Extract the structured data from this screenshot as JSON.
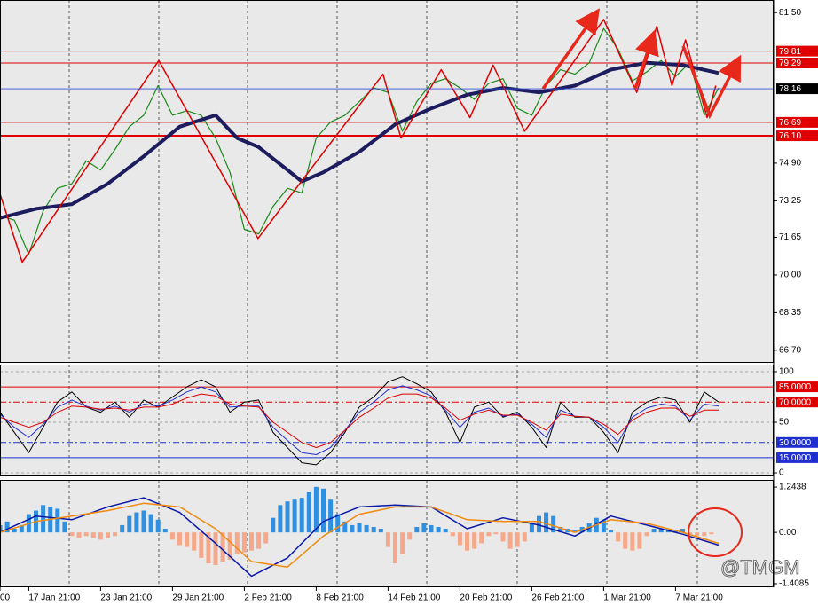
{
  "chart_data": [
    {
      "type": "line",
      "xlim": [
        0,
        100
      ],
      "ylim": [
        66.15,
        82.05
      ],
      "yticks": [
        {
          "value": 81.5,
          "label": "81.50"
        },
        {
          "value": 74.9,
          "label": "74.90"
        },
        73.25,
        71.65,
        {
          "value": 70,
          "label": "70.00"
        },
        68.35,
        {
          "value": 66.7,
          "label": "66.70"
        }
      ],
      "levels": [
        {
          "value": 79.81,
          "color": "#e00000",
          "width": 1
        },
        {
          "value": 79.29,
          "color": "#e00000",
          "width": 1
        },
        {
          "value": 76.69,
          "color": "#e00000",
          "width": 1
        },
        {
          "value": 76.1,
          "label": "76.10",
          "color": "#e00000",
          "width": 2
        }
      ],
      "current_price": {
        "value": 78.16,
        "color": "#3050d0"
      },
      "series": [
        {
          "color": "#1a8a1a",
          "width": 1.2,
          "x": [
            0,
            2,
            4,
            6,
            8,
            10,
            12,
            14,
            16,
            18,
            20,
            22,
            24,
            26,
            28,
            30,
            32,
            34,
            36,
            38,
            40,
            42,
            44,
            46,
            48,
            50,
            52,
            54,
            56,
            58,
            60,
            62,
            64,
            66,
            68,
            70,
            72,
            74,
            76,
            78,
            80,
            82,
            84,
            86,
            88,
            90,
            92,
            94,
            96,
            98,
            100
          ],
          "values": [
            72.6,
            72.4,
            70.9,
            72.8,
            73.8,
            74,
            75,
            74.6,
            75.5,
            76.5,
            77,
            78.3,
            77,
            77.2,
            77,
            76,
            74.5,
            72,
            71.8,
            73,
            73.8,
            73.6,
            76,
            76.7,
            77,
            77.6,
            78.2,
            78,
            76.3,
            77.6,
            78.4,
            78.6,
            78.2,
            77.7,
            78.4,
            78.6,
            77.3,
            77,
            78.3,
            79,
            78.8,
            79.3,
            80.8,
            79.9,
            78.5,
            78.9,
            79.4,
            78.7,
            79.3,
            77,
            78.2
          ]
        },
        {
          "color": "#1c1c5e",
          "width": 4,
          "x": [
            0,
            5,
            10,
            15,
            20,
            25,
            30,
            33,
            36,
            40,
            42,
            45,
            50,
            55,
            60,
            65,
            70,
            75,
            80,
            85,
            90,
            95,
            100
          ],
          "values": [
            72.5,
            72.9,
            73.1,
            74,
            75.2,
            76.5,
            77,
            76,
            75.6,
            74.6,
            74.1,
            74.5,
            75.4,
            76.6,
            77.3,
            77.9,
            78.2,
            78,
            78.3,
            79,
            79.3,
            79.2,
            78.85
          ]
        },
        {
          "color": "#e00000",
          "width": 1.5,
          "x": [
            0,
            3.1,
            22.1,
            35.9,
            53.3,
            55.8,
            61.4,
            65.4,
            68.6,
            73,
            84,
            88.6,
            91.4,
            93.5,
            95.4,
            98.4,
            99.6
          ],
          "values": [
            73.55,
            70.56,
            79.4,
            71.6,
            78.8,
            76,
            79,
            76.9,
            79.2,
            76.3,
            81.2,
            78,
            80.9,
            78.3,
            80.3,
            76.9,
            78.3
          ]
        }
      ]
    },
    {
      "type": "line",
      "xlim": [
        0,
        100
      ],
      "ylim": [
        -3.5,
        107
      ],
      "grid": true,
      "yticks": [
        100,
        50,
        0
      ],
      "levels": [
        {
          "value": 85,
          "label": "85.0000",
          "color": "#e00000",
          "style": "solid"
        },
        {
          "value": 70,
          "label": "70.0000",
          "color": "#e00000",
          "style": "dashdot"
        },
        {
          "value": 30,
          "label": "30.0000",
          "color": "#2030d0",
          "style": "dashdot"
        },
        {
          "value": 15,
          "label": "15.0000",
          "color": "#2030d0",
          "style": "solid"
        }
      ],
      "x": [
        0,
        2,
        4,
        6,
        8,
        10,
        12,
        14,
        16,
        18,
        20,
        22,
        24,
        26,
        28,
        30,
        32,
        34,
        36,
        38,
        40,
        42,
        44,
        46,
        48,
        50,
        52,
        54,
        56,
        58,
        60,
        62,
        64,
        66,
        68,
        70,
        72,
        74,
        76,
        78,
        80,
        82,
        84,
        86,
        88,
        90,
        92,
        94,
        96,
        98,
        100
      ],
      "series": [
        {
          "color": "#000000",
          "width": 1,
          "values": [
            60,
            40,
            20,
            45,
            70,
            80,
            65,
            60,
            70,
            55,
            72,
            65,
            75,
            85,
            92,
            85,
            60,
            70,
            72,
            40,
            25,
            10,
            8,
            20,
            40,
            65,
            75,
            90,
            95,
            88,
            80,
            60,
            30,
            65,
            70,
            55,
            60,
            45,
            25,
            70,
            55,
            55,
            40,
            20,
            60,
            70,
            75,
            72,
            50,
            80,
            70
          ]
        },
        {
          "color": "#2030d0",
          "width": 1,
          "values": [
            58,
            45,
            35,
            48,
            65,
            72,
            66,
            62,
            66,
            60,
            68,
            66,
            72,
            80,
            85,
            80,
            65,
            66,
            66,
            45,
            32,
            20,
            18,
            25,
            42,
            60,
            70,
            82,
            86,
            82,
            76,
            62,
            45,
            60,
            64,
            56,
            58,
            48,
            35,
            62,
            56,
            55,
            45,
            30,
            55,
            64,
            68,
            66,
            52,
            68,
            66
          ]
        },
        {
          "color": "#e00000",
          "width": 1,
          "values": [
            55,
            50,
            45,
            50,
            60,
            66,
            65,
            63,
            64,
            62,
            65,
            65,
            68,
            74,
            78,
            76,
            68,
            66,
            65,
            50,
            40,
            30,
            25,
            30,
            42,
            55,
            64,
            74,
            78,
            78,
            74,
            64,
            52,
            58,
            62,
            57,
            57,
            50,
            42,
            58,
            56,
            55,
            48,
            38,
            52,
            60,
            64,
            64,
            56,
            62,
            62
          ]
        }
      ]
    },
    {
      "type": "bar",
      "xlim": [
        0,
        100
      ],
      "ylim": [
        -1.506,
        1.44
      ],
      "yticks": [
        1.2438,
        {
          "value": 0,
          "label": "0.00"
        },
        -1.4085
      ],
      "colors": {
        "positive": "#2f8fe0",
        "negative": "#f6a88a"
      },
      "x": [
        0,
        1,
        2,
        3,
        4,
        5,
        6,
        7,
        8,
        9,
        10,
        11,
        12,
        13,
        14,
        15,
        16,
        17,
        18,
        19,
        20,
        21,
        22,
        23,
        24,
        25,
        26,
        27,
        28,
        29,
        30,
        31,
        32,
        33,
        34,
        35,
        36,
        37,
        38,
        39,
        40,
        41,
        42,
        43,
        44,
        45,
        46,
        47,
        48,
        49,
        50,
        51,
        52,
        53,
        54,
        55,
        56,
        57,
        58,
        59,
        60,
        61,
        62,
        63,
        64,
        65,
        66,
        67,
        68,
        69,
        70,
        71,
        72,
        73,
        74,
        75,
        76,
        77,
        78,
        79,
        80,
        81,
        82,
        83,
        84,
        85,
        86,
        87,
        88,
        89,
        90,
        91,
        92,
        93,
        94,
        95,
        96,
        97,
        98,
        99
      ],
      "values": [
        0.2,
        0.3,
        0.1,
        0.2,
        0.5,
        0.6,
        0.75,
        0.7,
        0.65,
        0.3,
        -0.1,
        -0.15,
        -0.1,
        -0.15,
        -0.2,
        -0.15,
        -0.1,
        0.2,
        0.45,
        0.55,
        0.6,
        0.5,
        0.35,
        0.1,
        -0.2,
        -0.35,
        -0.4,
        -0.5,
        -0.7,
        -0.85,
        -0.9,
        -0.8,
        -0.75,
        -0.6,
        -0.55,
        -0.5,
        -0.45,
        -0.3,
        0.4,
        0.75,
        0.85,
        0.9,
        0.95,
        1.1,
        1.25,
        1.2,
        0.9,
        0.5,
        0.3,
        0.2,
        0.25,
        0.2,
        0.15,
        0.1,
        -0.4,
        -0.85,
        -0.6,
        -0.2,
        0.15,
        0.25,
        0.2,
        0.15,
        0.1,
        -0.1,
        -0.35,
        -0.5,
        -0.45,
        -0.3,
        -0.1,
        -0.05,
        -0.25,
        -0.45,
        -0.4,
        -0.25,
        0.25,
        0.45,
        0.55,
        0.45,
        0.15,
        0.1,
        0.05,
        0.15,
        0.25,
        0.4,
        0.35,
        0.05,
        -0.25,
        -0.45,
        -0.5,
        -0.45,
        -0.1,
        0.1,
        0.1,
        0.1,
        0.05,
        0.1,
        -0.05,
        -0.1,
        -0.1,
        -0.05
      ],
      "series": [
        {
          "color": "#0a1aa8",
          "width": 1.5,
          "x": [
            0,
            5,
            10,
            15,
            20,
            25,
            30,
            35,
            40,
            45,
            50,
            55,
            60,
            65,
            70,
            75,
            80,
            85,
            90,
            95,
            100
          ],
          "values": [
            0,
            0.45,
            0.35,
            0.7,
            0.95,
            0.55,
            -0.3,
            -1.2,
            -0.7,
            0.3,
            0.7,
            0.75,
            0.7,
            0.1,
            0.4,
            0.2,
            -0.1,
            0.45,
            0.2,
            -0.05,
            -0.35
          ]
        },
        {
          "color": "#f08a10",
          "width": 1.5,
          "x": [
            0,
            5,
            10,
            15,
            20,
            25,
            30,
            35,
            40,
            45,
            50,
            55,
            60,
            65,
            70,
            75,
            80,
            85,
            90,
            95,
            100
          ],
          "values": [
            0,
            0.3,
            0.45,
            0.6,
            0.8,
            0.7,
            0.1,
            -0.8,
            -0.95,
            -0.1,
            0.5,
            0.7,
            0.7,
            0.35,
            0.3,
            0.3,
            0,
            0.35,
            0.25,
            0,
            -0.3
          ]
        }
      ],
      "xticks": [
        {
          "value": 0,
          "label": "00"
        },
        {
          "value": 4,
          "label": "17 Jan 21:00"
        },
        {
          "value": 14,
          "label": "23 Jan 21:00"
        },
        {
          "value": 24,
          "label": "29 Jan 21:00"
        },
        {
          "value": 34,
          "label": "2 Feb 21:00"
        },
        {
          "value": 44,
          "label": "8 Feb 21:00"
        },
        {
          "value": 54,
          "label": "14 Feb 21:00"
        },
        {
          "value": 64,
          "label": "20 Feb 21:00"
        },
        {
          "value": 74,
          "label": "26 Feb 21:00"
        },
        {
          "value": 84,
          "label": "1 Mar 21:00"
        },
        {
          "value": 94,
          "label": "7 Mar 21:00"
        }
      ],
      "annotation": "@TMGM"
    }
  ]
}
